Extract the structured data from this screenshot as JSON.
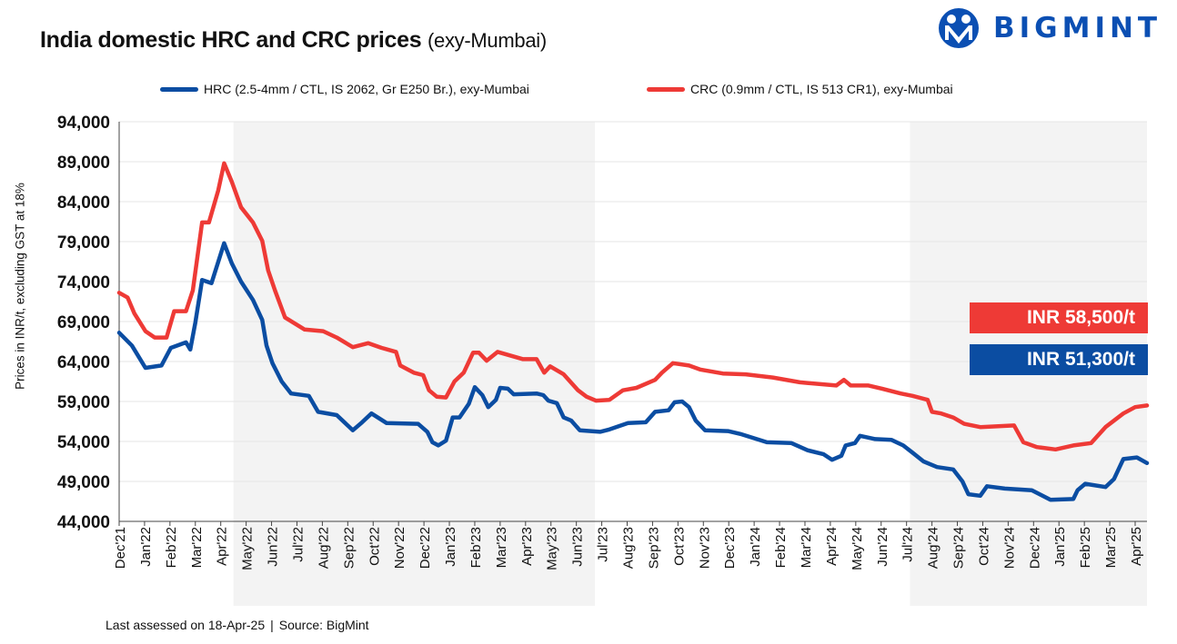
{
  "header": {
    "title": "India domestic HRC and CRC prices",
    "subtitle": "(exy-Mumbai)",
    "logo_text": "BIGMINT"
  },
  "footer": {
    "assessed": "Last assessed on 18-Apr-25",
    "separator": "|",
    "source": "Source: BigMint"
  },
  "badges": {
    "crc": "INR 58,500/t",
    "hrc": "INR 51,300/t"
  },
  "colors": {
    "hrc": "#0b4da2",
    "crc": "#ee3a36",
    "shade": "#f3f3f3",
    "brand": "#0b4fb3"
  },
  "chart_data": {
    "type": "line",
    "title": "India domestic HRC and CRC prices (exy-Mumbai)",
    "ylabel": "Prices in INR/t, excluding GST at 18%",
    "ylim": [
      44000,
      94000
    ],
    "yticks": [
      "44,000",
      "49,000",
      "54,000",
      "59,000",
      "64,000",
      "69,000",
      "74,000",
      "79,000",
      "84,000",
      "89,000",
      "94,000"
    ],
    "ytick_values": [
      44000,
      49000,
      54000,
      59000,
      64000,
      69000,
      74000,
      79000,
      84000,
      89000,
      94000
    ],
    "xlim": [
      "2021-12-01",
      "2025-04-15"
    ],
    "xticks": [
      "Dec'21",
      "Jan'22",
      "Feb'22",
      "Mar'22",
      "Apr'22",
      "May'22",
      "Jun'22",
      "Jul'22",
      "Aug'22",
      "Sep'22",
      "Oct'22",
      "Nov'22",
      "Dec'22",
      "Jan'23",
      "Feb'23",
      "Mar'23",
      "Apr'23",
      "May'23",
      "Jun'23",
      "Jul'23",
      "Aug'23",
      "Sep'23",
      "Oct'23",
      "Nov'23",
      "Dec'23",
      "Jan'24",
      "Feb'24",
      "Mar'24",
      "Apr'24",
      "May'24",
      "Jun'24",
      "Jul'24",
      "Aug'24",
      "Sep'24",
      "Oct'24",
      "Nov'24",
      "Dec'24",
      "Jan'25",
      "Feb'25",
      "Mar'25",
      "Apr'25"
    ],
    "grid": true,
    "legend_position": "top",
    "shaded_periods": [
      [
        "2022-04-16",
        "2023-06-23"
      ],
      [
        "2024-07-05",
        "2025-04-15"
      ]
    ],
    "series": [
      {
        "name": "HRC (2.5-4mm / CTL, IS 2062, Gr E250 Br.), exy-Mumbai",
        "color": "#0b4da2",
        "x": [
          "2021-12-01",
          "2021-12-16",
          "2022-01-02",
          "2022-01-21",
          "2022-02-02",
          "2022-02-20",
          "2022-02-25",
          "2022-03-01",
          "2022-03-09",
          "2022-03-20",
          "2022-04-05",
          "2022-04-14",
          "2022-04-25",
          "2022-05-09",
          "2022-05-20",
          "2022-05-25",
          "2022-06-02",
          "2022-06-13",
          "2022-06-24",
          "2022-07-15",
          "2022-07-26",
          "2022-08-18",
          "2022-09-07",
          "2022-09-18",
          "2022-09-29",
          "2022-10-17",
          "2022-11-24",
          "2022-12-05",
          "2022-12-11",
          "2022-12-18",
          "2022-12-27",
          "2023-01-05",
          "2023-01-13",
          "2023-01-24",
          "2023-02-01",
          "2023-02-10",
          "2023-02-17",
          "2023-02-26",
          "2023-03-01",
          "2023-03-10",
          "2023-03-17",
          "2023-04-14",
          "2023-04-22",
          "2023-04-28",
          "2023-05-08",
          "2023-05-16",
          "2023-05-25",
          "2023-06-05",
          "2023-06-29",
          "2023-07-10",
          "2023-08-02",
          "2023-08-23",
          "2023-09-04",
          "2023-09-20",
          "2023-09-27",
          "2023-10-06",
          "2023-10-14",
          "2023-10-22",
          "2023-11-03",
          "2023-11-30",
          "2023-12-16",
          "2024-01-16",
          "2024-02-15",
          "2024-03-04",
          "2024-03-23",
          "2024-04-03",
          "2024-04-14",
          "2024-04-19",
          "2024-04-30",
          "2024-05-06",
          "2024-05-24",
          "2024-06-13",
          "2024-06-27",
          "2024-07-08",
          "2024-07-21",
          "2024-08-07",
          "2024-08-26",
          "2024-09-07",
          "2024-09-14",
          "2024-09-28",
          "2024-10-06",
          "2024-10-27",
          "2024-11-29",
          "2024-12-10",
          "2024-12-21",
          "2025-01-18",
          "2025-01-23",
          "2025-02-02",
          "2025-02-26",
          "2025-03-06",
          "2025-03-17",
          "2025-04-03",
          "2025-04-15"
        ],
        "y": [
          67600,
          66000,
          63200,
          63500,
          65700,
          66400,
          65500,
          68900,
          74200,
          73800,
          78800,
          76300,
          74000,
          71700,
          69200,
          66000,
          63800,
          61500,
          60000,
          59700,
          57700,
          57300,
          55400,
          56400,
          57500,
          56300,
          56200,
          55200,
          53900,
          53500,
          54100,
          57000,
          57000,
          58700,
          60800,
          59800,
          58300,
          59200,
          60700,
          60600,
          59900,
          60000,
          59800,
          59100,
          58800,
          57000,
          56600,
          55400,
          55200,
          55500,
          56300,
          56400,
          57700,
          57900,
          58900,
          59000,
          58300,
          56600,
          55400,
          55300,
          54900,
          53900,
          53800,
          52900,
          52400,
          51700,
          52200,
          53500,
          53800,
          54700,
          54300,
          54200,
          53500,
          52600,
          51500,
          50800,
          50500,
          49000,
          47400,
          47200,
          48400,
          48100,
          47900,
          47300,
          46700,
          46800,
          47900,
          48700,
          48300,
          49300,
          51800,
          52000,
          51300
        ]
      },
      {
        "name": "CRC (0.9mm / CTL, IS 513 CR1), exy-Mumbai",
        "color": "#ee3a36",
        "x": [
          "2021-12-01",
          "2021-12-11",
          "2021-12-19",
          "2022-01-02",
          "2022-01-13",
          "2022-01-27",
          "2022-02-06",
          "2022-02-20",
          "2022-02-28",
          "2022-03-09",
          "2022-03-17",
          "2022-03-28",
          "2022-04-05",
          "2022-04-14",
          "2022-04-25",
          "2022-05-09",
          "2022-05-20",
          "2022-05-27",
          "2022-06-05",
          "2022-06-17",
          "2022-07-10",
          "2022-08-02",
          "2022-08-18",
          "2022-09-07",
          "2022-09-25",
          "2022-10-11",
          "2022-10-28",
          "2022-11-03",
          "2022-11-19",
          "2022-11-30",
          "2022-12-07",
          "2022-12-16",
          "2022-12-27",
          "2023-01-07",
          "2023-01-18",
          "2023-01-29",
          "2023-02-06",
          "2023-02-15",
          "2023-02-28",
          "2023-03-28",
          "2023-04-14",
          "2023-04-23",
          "2023-04-30",
          "2023-05-16",
          "2023-06-03",
          "2023-06-13",
          "2023-06-24",
          "2023-07-10",
          "2023-07-26",
          "2023-08-12",
          "2023-09-04",
          "2023-09-12",
          "2023-09-25",
          "2023-10-14",
          "2023-10-27",
          "2023-11-24",
          "2023-12-21",
          "2024-01-23",
          "2024-02-25",
          "2024-04-08",
          "2024-04-17",
          "2024-04-25",
          "2024-05-16",
          "2024-06-02",
          "2024-06-24",
          "2024-07-08",
          "2024-07-26",
          "2024-08-01",
          "2024-08-12",
          "2024-08-26",
          "2024-09-09",
          "2024-09-28",
          "2024-11-08",
          "2024-11-19",
          "2024-12-05",
          "2024-12-27",
          "2025-01-18",
          "2025-02-09",
          "2025-02-26",
          "2025-03-06",
          "2025-03-17",
          "2025-04-01",
          "2025-04-15"
        ],
        "y": [
          72600,
          72000,
          70000,
          67800,
          67000,
          67000,
          70300,
          70300,
          72900,
          81400,
          81400,
          85400,
          88800,
          86500,
          83300,
          81400,
          79100,
          75400,
          72900,
          69500,
          68000,
          67800,
          67000,
          65800,
          66300,
          65700,
          65200,
          63500,
          62600,
          62300,
          60400,
          59600,
          59500,
          61500,
          62600,
          65100,
          65100,
          64100,
          65200,
          64300,
          64300,
          62600,
          63400,
          62400,
          60400,
          59600,
          59100,
          59200,
          60400,
          60700,
          61700,
          62600,
          63800,
          63500,
          63000,
          62500,
          62400,
          62000,
          61400,
          61000,
          61700,
          61000,
          61000,
          60600,
          60000,
          59700,
          59200,
          57700,
          57500,
          57000,
          56200,
          55800,
          56000,
          53900,
          53300,
          53000,
          53500,
          53800,
          55800,
          56600,
          57500,
          58300,
          58500
        ]
      }
    ]
  }
}
